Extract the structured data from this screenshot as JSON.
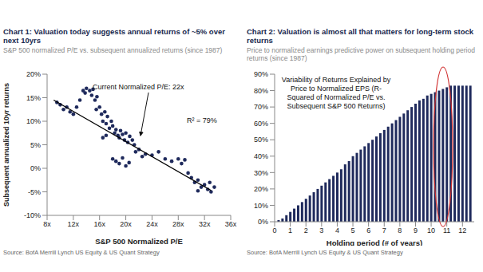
{
  "chart_data": [
    {
      "type": "scatter",
      "title": "Chart 1: Valuation today suggests annual returns of ~5% over next 10yrs",
      "subtitle": "S&P 500 normalized P/E vs. subsequent annualized returns (since 1987)",
      "x_label": "S&P 500 Normalized P/E",
      "y_label": "Subsequent annualized 10yr returns",
      "annotations": [
        "Current Normalized P/E: 22x",
        "R² = 79%"
      ],
      "source": "Source: BofA Merrill Lynch US Equity & US Quant Strategy",
      "xlim": [
        8,
        36
      ],
      "xticks": [
        {
          "value": 8,
          "label": "8x"
        },
        {
          "value": 12,
          "label": "12x"
        },
        {
          "value": 16,
          "label": "16x"
        },
        {
          "value": 20,
          "label": "20x"
        },
        {
          "value": 24,
          "label": "24x"
        },
        {
          "value": 28,
          "label": "28x"
        },
        {
          "value": 32,
          "label": "32x"
        },
        {
          "value": 36,
          "label": "36x"
        }
      ],
      "ylim": [
        -10,
        20
      ],
      "yticks": [
        {
          "value": -10,
          "label": "-10%"
        },
        {
          "value": -5,
          "label": "-5%"
        },
        {
          "value": 0,
          "label": "0%"
        },
        {
          "value": 5,
          "label": "5%"
        },
        {
          "value": 10,
          "label": "10%"
        },
        {
          "value": 15,
          "label": "15%"
        },
        {
          "value": 20,
          "label": "20%"
        }
      ],
      "grid": false,
      "series": [
        {
          "type": "scatter",
          "color": "#1f2a5c",
          "marker": "circle",
          "x": [
            9.5,
            10,
            10.5,
            11,
            11.5,
            12,
            12.5,
            13,
            13.5,
            13.8,
            14,
            14.5,
            14.8,
            15,
            15.3,
            15.6,
            15.5,
            16,
            16.3,
            16.5,
            16.8,
            17,
            17.2,
            17.5,
            17.8,
            17,
            16.5,
            18,
            18.3,
            18.5,
            18.8,
            19,
            19.2,
            19.5,
            19.8,
            20,
            20.3,
            20.6,
            21,
            21.3,
            18,
            18.5,
            19,
            19.5,
            20,
            20.5,
            21.5,
            22,
            22.5,
            23,
            24,
            25,
            26,
            27,
            28,
            28.5,
            29,
            29.5,
            30,
            30.5,
            31,
            31.5,
            32,
            32.5,
            33,
            33.5,
            31,
            32.8
          ],
          "values": [
            14,
            13.5,
            12.5,
            13,
            12,
            11.5,
            13,
            14.5,
            16.5,
            16,
            17,
            16.5,
            15.5,
            16.8,
            14.5,
            15.2,
            12.5,
            13,
            11.5,
            10,
            12,
            9.5,
            11,
            8.5,
            10,
            7,
            6.5,
            9,
            7.5,
            8.2,
            7,
            6.5,
            8,
            7.2,
            6,
            7.5,
            5.5,
            6.8,
            6,
            5,
            2,
            1.5,
            1,
            2.2,
            0.5,
            1.2,
            3.5,
            4,
            2.5,
            3,
            2.8,
            3.5,
            2,
            1.5,
            2,
            1,
            1.8,
            -1,
            -2,
            -3,
            -2.5,
            -4,
            -3.5,
            -4.5,
            -5,
            -4,
            -4.8,
            -3
          ]
        },
        {
          "type": "line",
          "color": "#000000",
          "line_style": "solid",
          "x": [
            9,
            33
          ],
          "values": [
            14.5,
            -4.7
          ]
        }
      ]
    },
    {
      "type": "bar",
      "title": "Chart 2: Valuation is almost all that matters for long-term stock returns",
      "subtitle": "Price to normalized earnings predictive power on subsequent holding period returns (since 1987)",
      "annotation": "Variability of Returns Explained by Price to Normalized EPS (R-Squared of Normalized P/E vs. Subsequent S&P 500 Returns)",
      "x_label": "Holding period (# of years)",
      "source": "Source: BofA Merrill Lynch US Equity & US Quant Strategy",
      "color": "#1f2a5c",
      "x": [
        0.25,
        0.5,
        0.75,
        1,
        1.25,
        1.5,
        1.75,
        2,
        2.25,
        2.5,
        2.75,
        3,
        3.25,
        3.5,
        3.75,
        4,
        4.25,
        4.5,
        4.75,
        5,
        5.25,
        5.5,
        5.75,
        6,
        6.25,
        6.5,
        6.75,
        7,
        7.25,
        7.5,
        7.75,
        8,
        8.25,
        8.5,
        8.75,
        9,
        9.25,
        9.5,
        9.75,
        10,
        10.25,
        10.5,
        10.75,
        11,
        11.25,
        11.5,
        11.75,
        12,
        12.25,
        12.5
      ],
      "values": [
        1,
        2,
        4,
        6,
        8,
        10,
        12,
        14,
        16,
        18,
        20,
        22,
        24,
        26,
        28,
        30,
        32,
        35,
        37,
        40,
        42,
        44,
        46,
        48,
        50,
        52,
        54,
        56,
        58,
        60,
        62,
        64,
        66,
        68,
        70,
        72,
        74,
        75,
        77,
        78,
        79,
        80,
        81,
        82,
        83,
        83,
        83,
        83,
        83,
        83
      ],
      "xlim": [
        0,
        12.75
      ],
      "xticks": [
        0,
        1,
        2,
        3,
        4,
        5,
        6,
        7,
        8,
        9,
        10,
        11,
        12
      ],
      "ylim": [
        0,
        90
      ],
      "yticks": [
        {
          "value": 0,
          "label": "0%"
        },
        {
          "value": 10,
          "label": "10%"
        },
        {
          "value": 20,
          "label": "20%"
        },
        {
          "value": 30,
          "label": "30%"
        },
        {
          "value": 40,
          "label": "40%"
        },
        {
          "value": 50,
          "label": "50%"
        },
        {
          "value": 60,
          "label": "60%"
        },
        {
          "value": 70,
          "label": "70%"
        },
        {
          "value": 80,
          "label": "80%"
        },
        {
          "value": 90,
          "label": "90%"
        }
      ],
      "grid": false
    }
  ]
}
